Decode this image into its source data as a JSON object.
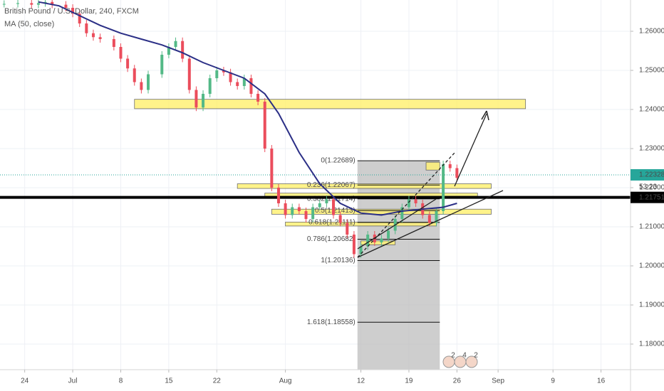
{
  "chart_data": {
    "type": "candlestick",
    "title": "British Pound / U.S. Dollar, 240, FXCM",
    "indicator": "MA (50, close)",
    "colors": {
      "up": "#53b987",
      "down": "#eb4d5c",
      "ma": "#2b2f86",
      "zone": "#fff176",
      "fib_box": "#bdbdbd"
    },
    "x": [
      -3,
      -1,
      1,
      2,
      3,
      4,
      6,
      7,
      8,
      9,
      10,
      11,
      13,
      14,
      15,
      16,
      17,
      18,
      20,
      21,
      22,
      23,
      24,
      25,
      26,
      27,
      28,
      29,
      30,
      31,
      32,
      33,
      34,
      35,
      36,
      37,
      38,
      39,
      40,
      41,
      42,
      43,
      44,
      45,
      46,
      47,
      48,
      49,
      50,
      51,
      52,
      53,
      54,
      55,
      56,
      57,
      58,
      59,
      60,
      61,
      62,
      63
    ],
    "values": [
      1.267,
      1.2672,
      1.2668,
      1.2672,
      1.2675,
      1.2668,
      1.266,
      1.2645,
      1.262,
      1.2595,
      1.2585,
      1.258,
      1.256,
      1.253,
      1.2505,
      1.247,
      1.245,
      1.249,
      1.254,
      1.256,
      1.2575,
      1.253,
      1.245,
      1.2405,
      1.244,
      1.248,
      1.25,
      1.2495,
      1.247,
      1.246,
      1.248,
      1.244,
      1.242,
      1.23,
      1.22,
      1.216,
      1.213,
      1.215,
      1.214,
      1.212,
      1.215,
      1.216,
      1.217,
      1.213,
      1.211,
      1.208,
      1.203,
      1.205,
      1.208,
      1.206,
      1.207,
      1.209,
      1.212,
      1.215,
      1.217,
      1.216,
      1.213,
      1.211,
      1.214,
      1.226,
      1.225,
      1.2225
    ],
    "ma": {
      "name": "MA (50, close)",
      "x": [
        2,
        5,
        8,
        11,
        14,
        17,
        20,
        23,
        26,
        29,
        32,
        35,
        37,
        40,
        43,
        46,
        49,
        52,
        55,
        58,
        61,
        63
      ],
      "values": [
        1.2675,
        1.2665,
        1.264,
        1.2615,
        1.2595,
        1.258,
        1.2565,
        1.2545,
        1.252,
        1.25,
        1.248,
        1.244,
        1.239,
        1.229,
        1.221,
        1.216,
        1.2135,
        1.213,
        1.214,
        1.2145,
        1.215,
        1.216
      ]
    },
    "xlim": [
      -3.6,
      88.3
    ],
    "xticks": [
      {
        "value": 0,
        "label": "24"
      },
      {
        "value": 7,
        "label": "Jul"
      },
      {
        "value": 14,
        "label": "8"
      },
      {
        "value": 21,
        "label": "15"
      },
      {
        "value": 28,
        "label": "22"
      },
      {
        "value": 38,
        "label": "Aug"
      },
      {
        "value": 49,
        "label": "12"
      },
      {
        "value": 56,
        "label": "19"
      },
      {
        "value": 63,
        "label": "26"
      },
      {
        "value": 69,
        "label": "Sep"
      },
      {
        "value": 77,
        "label": "9"
      },
      {
        "value": 84,
        "label": "16"
      }
    ],
    "ylim": [
      1.17345,
      1.268
    ],
    "yticks": [
      {
        "value": 1.18,
        "label": "1.18000"
      },
      {
        "value": 1.19,
        "label": "1.19000"
      },
      {
        "value": 1.2,
        "label": "1.20000"
      },
      {
        "value": 1.21,
        "label": "1.21000"
      },
      {
        "value": 1.22,
        "label": "1.22000"
      },
      {
        "value": 1.23,
        "label": "1.23000"
      },
      {
        "value": 1.24,
        "label": "1.24000"
      },
      {
        "value": 1.25,
        "label": "1.25000"
      },
      {
        "value": 1.26,
        "label": "1.26000"
      }
    ],
    "grid": true,
    "last_price": 1.22328,
    "countdown": "53:23",
    "support_line": 1.21751,
    "zones": [
      {
        "x": [
          16,
          73
        ],
        "y": [
          1.2402,
          1.2426
        ]
      },
      {
        "x": [
          31,
          68
        ],
        "y": [
          1.2198,
          1.221
        ]
      },
      {
        "x": [
          35,
          66
        ],
        "y": [
          1.2178,
          1.2186
        ]
      },
      {
        "x": [
          36,
          68
        ],
        "y": [
          1.2132,
          1.2145
        ]
      },
      {
        "x": [
          38,
          60
        ],
        "y": [
          1.2102,
          1.2112
        ]
      },
      {
        "x": [
          49,
          54
        ],
        "y": [
          1.2054,
          1.2064
        ]
      },
      {
        "x": [
          58.5,
          60.5
        ],
        "y": [
          1.2245,
          1.2265
        ]
      }
    ],
    "fib": {
      "x": [
        48.5,
        60.5
      ],
      "levels": [
        {
          "value": 1.22689,
          "label": "0(1.22689)"
        },
        {
          "value": 1.22067,
          "label": "0.236(1.22067)"
        },
        {
          "value": 1.21714,
          "label": "0.382(1.21714)"
        },
        {
          "value": 1.21413,
          "label": "0.5(1.21413)"
        },
        {
          "value": 1.21111,
          "label": "0.618(1.21111)"
        },
        {
          "value": 1.20682,
          "label": "0.786(1.20682)"
        },
        {
          "value": 1.20136,
          "label": "1(1.20136)"
        },
        {
          "value": 1.18558,
          "label": "1.618(1.18558)"
        }
      ]
    },
    "events": [
      "2",
      "4",
      "2"
    ]
  }
}
